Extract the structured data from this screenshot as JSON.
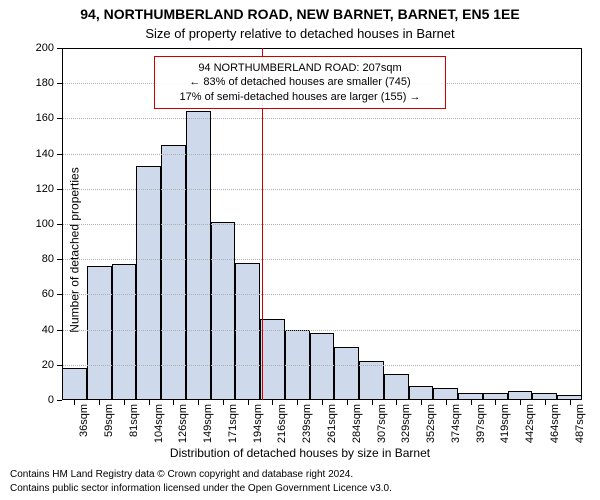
{
  "chart": {
    "type": "histogram",
    "title_main": "94, NORTHUMBERLAND ROAD, NEW BARNET, BARNET, EN5 1EE",
    "title_sub": "Size of property relative to detached houses in Barnet",
    "ylabel": "Number of detached properties",
    "xlabel": "Distribution of detached houses by size in Barnet",
    "ylim": [
      0,
      200
    ],
    "ytick_step": 20,
    "yticks": [
      0,
      20,
      40,
      60,
      80,
      100,
      120,
      140,
      160,
      180,
      200
    ],
    "xticks": [
      "36sqm",
      "59sqm",
      "81sqm",
      "104sqm",
      "126sqm",
      "149sqm",
      "171sqm",
      "194sqm",
      "216sqm",
      "239sqm",
      "261sqm",
      "284sqm",
      "307sqm",
      "329sqm",
      "352sqm",
      "374sqm",
      "397sqm",
      "419sqm",
      "442sqm",
      "464sqm",
      "487sqm"
    ],
    "values": [
      18,
      76,
      77,
      133,
      145,
      164,
      101,
      78,
      46,
      40,
      38,
      30,
      22,
      15,
      8,
      7,
      4,
      4,
      5,
      4,
      3
    ],
    "bar_fill": "#cfd9ec",
    "bar_stroke": "#000000",
    "grid_color": "#b0b0b0",
    "background_color": "#ffffff",
    "frame_color": "#000000",
    "ref_line_color": "#cc0000",
    "ref_value_sqm": 207,
    "title_fontsize": 14,
    "subtitle_fontsize": 13,
    "label_fontsize": 12,
    "tick_fontsize": 11,
    "bar_width_ratio": 1.0
  },
  "annotation": {
    "line1": "94 NORTHUMBERLAND ROAD: 207sqm",
    "line2": "← 83% of detached houses are smaller (745)",
    "line3": "17% of semi-detached houses are larger (155) →",
    "border_color": "#cc0000",
    "fontsize": 11
  },
  "footer": {
    "line1": "Contains HM Land Registry data © Crown copyright and database right 2024.",
    "line2": "Contains public sector information licensed under the Open Government Licence v3.0."
  }
}
